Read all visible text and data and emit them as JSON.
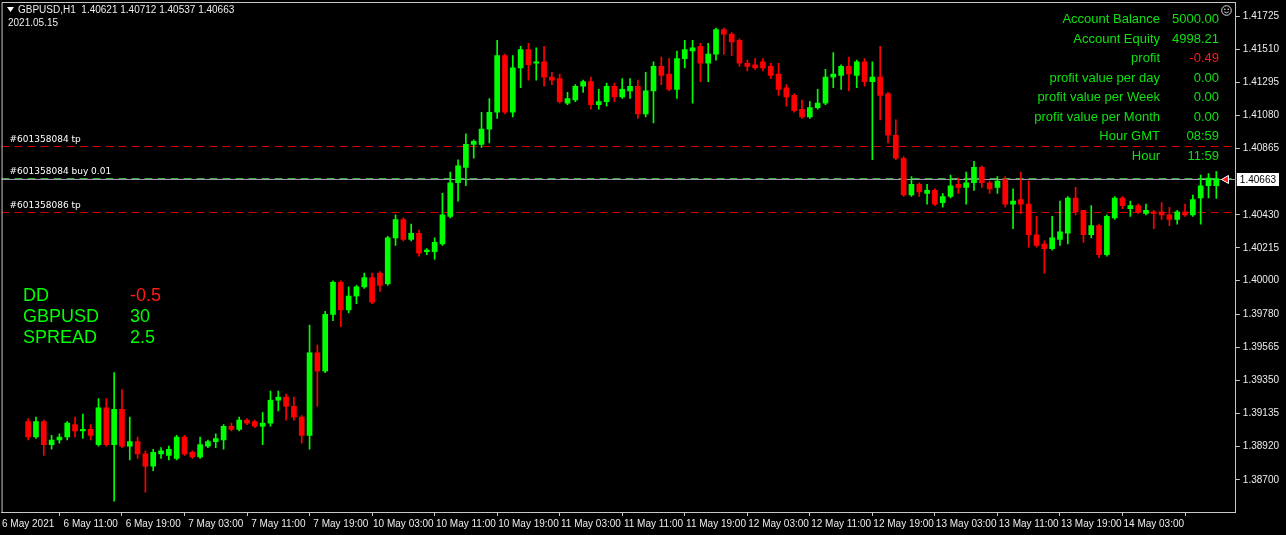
{
  "chart_data": {
    "type": "candlestick",
    "title": "GBPUSD,H1  1.40621 1.40712 1.40537 1.40663",
    "subtitle": "2021.05.15",
    "categories": [
      "6 May 2021",
      null,
      null,
      null,
      null,
      null,
      null,
      null,
      "6 May 11:00",
      null,
      null,
      null,
      null,
      null,
      null,
      null,
      "6 May 19:00",
      null,
      null,
      null,
      null,
      null,
      null,
      null,
      "7 May 03:00",
      null,
      null,
      null,
      null,
      null,
      null,
      null,
      "7 May 11:00",
      null,
      null,
      null,
      null,
      null,
      null,
      null,
      "7 May 19:00",
      null,
      null,
      null,
      null,
      null,
      null,
      null,
      "10 May 03:00",
      null,
      null,
      null,
      null,
      null,
      null,
      null,
      "10 May 11:00",
      null,
      null,
      null,
      null,
      null,
      null,
      null,
      "10 May 19:00",
      null,
      null,
      null,
      null,
      null,
      null,
      null,
      "11 May 03:00",
      null,
      null,
      null,
      null,
      null,
      null,
      null,
      "11 May 11:00",
      null,
      null,
      null,
      null,
      null,
      null,
      null,
      "11 May 19:00",
      null,
      null,
      null,
      null,
      null,
      null,
      null,
      "12 May 03:00",
      null,
      null,
      null,
      null,
      null,
      null,
      null,
      "12 May 11:00",
      null,
      null,
      null,
      null,
      null,
      null,
      null,
      "12 May 19:00",
      null,
      null,
      null,
      null,
      null,
      null,
      null,
      "13 May 03:00",
      null,
      null,
      null,
      null,
      null,
      null,
      null,
      "13 May 11:00",
      null,
      null,
      null,
      null,
      null,
      null,
      null,
      "13 May 19:00",
      null,
      null,
      null,
      null,
      null,
      null,
      null,
      "14 May 03:00",
      null,
      null,
      null,
      null,
      null,
      null,
      null,
      null
    ],
    "ohlc": [
      [
        1.3908,
        1.391,
        1.3896,
        1.3898
      ],
      [
        1.3898,
        1.3911,
        1.3897,
        1.3908
      ],
      [
        1.3908,
        1.3909,
        1.3886,
        1.3893
      ],
      [
        1.3893,
        1.3899,
        1.389,
        1.3896
      ],
      [
        1.3896,
        1.39,
        1.3894,
        1.3898
      ],
      [
        1.3898,
        1.3908,
        1.3896,
        1.3907
      ],
      [
        1.3906,
        1.3911,
        1.3898,
        1.3902
      ],
      [
        1.3902,
        1.3913,
        1.3897,
        1.3903
      ],
      [
        1.3903,
        1.3906,
        1.3896,
        1.3899
      ],
      [
        1.3893,
        1.3923,
        1.3892,
        1.3917
      ],
      [
        1.3917,
        1.3923,
        1.3892,
        1.3893
      ],
      [
        1.3893,
        1.394,
        1.3856,
        1.3916
      ],
      [
        1.3916,
        1.3929,
        1.3891,
        1.3892
      ],
      [
        1.3892,
        1.3911,
        1.3883,
        1.3895
      ],
      [
        1.3895,
        1.3898,
        1.3884,
        1.3887
      ],
      [
        1.3887,
        1.3889,
        1.3862,
        1.3879
      ],
      [
        1.3879,
        1.389,
        1.3876,
        1.3888
      ],
      [
        1.3887,
        1.3891,
        1.3884,
        1.3889
      ],
      [
        1.3886,
        1.3892,
        1.3883,
        1.389
      ],
      [
        1.3884,
        1.3899,
        1.3883,
        1.3898
      ],
      [
        1.3898,
        1.3899,
        1.3886,
        1.3887
      ],
      [
        1.3888,
        1.3889,
        1.3884,
        1.3885
      ],
      [
        1.3885,
        1.3898,
        1.3884,
        1.3893
      ],
      [
        1.3892,
        1.3896,
        1.3891,
        1.3895
      ],
      [
        1.3895,
        1.39,
        1.3891,
        1.3897
      ],
      [
        1.3896,
        1.3906,
        1.389,
        1.3905
      ],
      [
        1.3905,
        1.3907,
        1.3902,
        1.3903
      ],
      [
        1.3903,
        1.3911,
        1.3902,
        1.3909
      ],
      [
        1.3909,
        1.391,
        1.3906,
        1.3907
      ],
      [
        1.3908,
        1.3909,
        1.3904,
        1.3905
      ],
      [
        1.3905,
        1.3914,
        1.3893,
        1.3907
      ],
      [
        1.3907,
        1.3928,
        1.3905,
        1.3922
      ],
      [
        1.3922,
        1.3928,
        1.3915,
        1.3924
      ],
      [
        1.3924,
        1.3926,
        1.3909,
        1.3918
      ],
      [
        1.3918,
        1.3924,
        1.3909,
        1.3911
      ],
      [
        1.3911,
        1.3912,
        1.3894,
        1.3899
      ],
      [
        1.3899,
        1.3971,
        1.389,
        1.3953
      ],
      [
        1.3953,
        1.3958,
        1.3918,
        1.3941
      ],
      [
        1.3941,
        1.398,
        1.394,
        1.3978
      ],
      [
        1.3978,
        1.4,
        1.3974,
        1.3999
      ],
      [
        1.3999,
        1.4,
        1.397,
        1.3981
      ],
      [
        1.3981,
        1.3996,
        1.3979,
        1.399
      ],
      [
        1.399,
        1.3997,
        1.3985,
        1.3996
      ],
      [
        1.3996,
        1.4005,
        1.3995,
        1.4002
      ],
      [
        1.4002,
        1.4005,
        1.3985,
        1.3986
      ],
      [
        1.4005,
        1.4006,
        1.3993,
        1.3997
      ],
      [
        1.3998,
        1.4029,
        1.3997,
        1.4028
      ],
      [
        1.4028,
        1.4043,
        1.4023,
        1.404
      ],
      [
        1.404,
        1.4041,
        1.4026,
        1.4027
      ],
      [
        1.4027,
        1.4037,
        1.4026,
        1.4031
      ],
      [
        1.4031,
        1.4033,
        1.4016,
        1.4018
      ],
      [
        1.4019,
        1.4021,
        1.4017,
        1.402
      ],
      [
        1.4019,
        1.4028,
        1.4014,
        1.4025
      ],
      [
        1.4024,
        1.4057,
        1.4023,
        1.4043
      ],
      [
        1.4042,
        1.4071,
        1.4041,
        1.4064
      ],
      [
        1.4064,
        1.4079,
        1.4052,
        1.4075
      ],
      [
        1.4074,
        1.4096,
        1.4062,
        1.4089
      ],
      [
        1.4089,
        1.4092,
        1.408,
        1.4091
      ],
      [
        1.4089,
        1.411,
        1.4087,
        1.4099
      ],
      [
        1.4099,
        1.4119,
        1.409,
        1.411
      ],
      [
        1.411,
        1.4157,
        1.4106,
        1.4147
      ],
      [
        1.4147,
        1.4148,
        1.4109,
        1.411
      ],
      [
        1.411,
        1.4147,
        1.4107,
        1.4139
      ],
      [
        1.4139,
        1.4153,
        1.4126,
        1.4151
      ],
      [
        1.4151,
        1.4155,
        1.4131,
        1.4141
      ],
      [
        1.4142,
        1.4152,
        1.4131,
        1.4143
      ],
      [
        1.4143,
        1.4153,
        1.4127,
        1.4133
      ],
      [
        1.4133,
        1.4136,
        1.4128,
        1.4131
      ],
      [
        1.4132,
        1.4135,
        1.4116,
        1.4117
      ],
      [
        1.4116,
        1.4123,
        1.4115,
        1.4119
      ],
      [
        1.4118,
        1.4128,
        1.4117,
        1.4127
      ],
      [
        1.4127,
        1.4131,
        1.4123,
        1.413
      ],
      [
        1.413,
        1.4133,
        1.4112,
        1.4115
      ],
      [
        1.4115,
        1.4125,
        1.4112,
        1.4117
      ],
      [
        1.4117,
        1.4129,
        1.4114,
        1.4127
      ],
      [
        1.4127,
        1.4129,
        1.4117,
        1.412
      ],
      [
        1.412,
        1.4132,
        1.4119,
        1.4125
      ],
      [
        1.4124,
        1.4132,
        1.4119,
        1.4127
      ],
      [
        1.4127,
        1.4131,
        1.4106,
        1.4109
      ],
      [
        1.4109,
        1.4136,
        1.4107,
        1.4124
      ],
      [
        1.4124,
        1.4143,
        1.4103,
        1.414
      ],
      [
        1.414,
        1.4146,
        1.4128,
        1.4134
      ],
      [
        1.4135,
        1.4145,
        1.4124,
        1.4125
      ],
      [
        1.4125,
        1.415,
        1.4119,
        1.4145
      ],
      [
        1.4145,
        1.4157,
        1.4139,
        1.4151
      ],
      [
        1.415,
        1.4157,
        1.4116,
        1.4152
      ],
      [
        1.4153,
        1.4155,
        1.413,
        1.4142
      ],
      [
        1.4142,
        1.4155,
        1.413,
        1.4148
      ],
      [
        1.4148,
        1.4165,
        1.4144,
        1.4164
      ],
      [
        1.4164,
        1.4165,
        1.4148,
        1.4161
      ],
      [
        1.4161,
        1.4162,
        1.4147,
        1.4156
      ],
      [
        1.4157,
        1.4158,
        1.414,
        1.4142
      ],
      [
        1.4142,
        1.4144,
        1.4137,
        1.414
      ],
      [
        1.4141,
        1.4145,
        1.4138,
        1.4139
      ],
      [
        1.4143,
        1.4145,
        1.4137,
        1.4139
      ],
      [
        1.414,
        1.4142,
        1.4132,
        1.4134
      ],
      [
        1.4135,
        1.4142,
        1.4121,
        1.4125
      ],
      [
        1.4126,
        1.4128,
        1.4114,
        1.412
      ],
      [
        1.4121,
        1.4122,
        1.411,
        1.4111
      ],
      [
        1.4112,
        1.4118,
        1.4106,
        1.4107
      ],
      [
        1.4107,
        1.4117,
        1.4106,
        1.4113
      ],
      [
        1.4113,
        1.4125,
        1.4112,
        1.4116
      ],
      [
        1.4116,
        1.4138,
        1.4115,
        1.4133
      ],
      [
        1.4133,
        1.4149,
        1.4126,
        1.4135
      ],
      [
        1.4134,
        1.4141,
        1.4125,
        1.414
      ],
      [
        1.414,
        1.4146,
        1.4124,
        1.4135
      ],
      [
        1.4134,
        1.4144,
        1.4126,
        1.4143
      ],
      [
        1.4143,
        1.4145,
        1.4127,
        1.413
      ],
      [
        1.413,
        1.4143,
        1.4079,
        1.4133
      ],
      [
        1.4133,
        1.4153,
        1.4105,
        1.4121
      ],
      [
        1.4122,
        1.4123,
        1.409,
        1.4095
      ],
      [
        1.4095,
        1.4105,
        1.4079,
        1.408
      ],
      [
        1.408,
        1.4081,
        1.4055,
        1.4056
      ],
      [
        1.4056,
        1.4068,
        1.4055,
        1.4063
      ],
      [
        1.4063,
        1.4064,
        1.4055,
        1.4058
      ],
      [
        1.4057,
        1.4063,
        1.405,
        1.4059
      ],
      [
        1.4059,
        1.406,
        1.4049,
        1.405
      ],
      [
        1.4051,
        1.4057,
        1.4048,
        1.4055
      ],
      [
        1.4055,
        1.4069,
        1.4054,
        1.4062
      ],
      [
        1.4063,
        1.4067,
        1.4057,
        1.4061
      ],
      [
        1.4061,
        1.4071,
        1.405,
        1.4064
      ],
      [
        1.4064,
        1.4078,
        1.4059,
        1.4074
      ],
      [
        1.4074,
        1.4075,
        1.4061,
        1.4064
      ],
      [
        1.4064,
        1.4065,
        1.4057,
        1.406
      ],
      [
        1.4061,
        1.4068,
        1.4057,
        1.4065
      ],
      [
        1.4066,
        1.4068,
        1.4048,
        1.405
      ],
      [
        1.405,
        1.406,
        1.4034,
        1.4052
      ],
      [
        1.4053,
        1.4071,
        1.4044,
        1.405
      ],
      [
        1.405,
        1.4065,
        1.4022,
        1.403
      ],
      [
        1.403,
        1.4042,
        1.4022,
        1.4023
      ],
      [
        1.4024,
        1.4026,
        1.4005,
        1.4021
      ],
      [
        1.4021,
        1.4042,
        1.402,
        1.4028
      ],
      [
        1.4027,
        1.4052,
        1.4023,
        1.4032
      ],
      [
        1.4031,
        1.4055,
        1.4024,
        1.4054
      ],
      [
        1.4054,
        1.4061,
        1.4043,
        1.4045
      ],
      [
        1.4046,
        1.4046,
        1.4025,
        1.403
      ],
      [
        1.403,
        1.4049,
        1.4028,
        1.4036
      ],
      [
        1.4036,
        1.4037,
        1.4015,
        1.4017
      ],
      [
        1.4017,
        1.4043,
        1.4016,
        1.4042
      ],
      [
        1.4041,
        1.4055,
        1.404,
        1.4054
      ],
      [
        1.4054,
        1.4055,
        1.4047,
        1.4049
      ],
      [
        1.4047,
        1.4052,
        1.4042,
        1.4049
      ],
      [
        1.4049,
        1.405,
        1.4044,
        1.4045
      ],
      [
        1.4044,
        1.405,
        1.4043,
        1.4046
      ],
      [
        1.4045,
        1.4046,
        1.4034,
        1.4044
      ],
      [
        1.4045,
        1.4051,
        1.404,
        1.4043
      ],
      [
        1.4043,
        1.4048,
        1.4036,
        1.404
      ],
      [
        1.404,
        1.4046,
        1.4037,
        1.4045
      ],
      [
        1.4045,
        1.405,
        1.4042,
        1.4043
      ],
      [
        1.4043,
        1.4056,
        1.4042,
        1.4053
      ],
      [
        1.4054,
        1.4069,
        1.4037,
        1.4062
      ],
      [
        1.4062,
        1.407,
        1.4054,
        1.4067
      ],
      [
        1.40621,
        1.40712,
        1.40537,
        1.40663
      ]
    ],
    "colors": [
      "#ff0000",
      "#00ff00",
      "#ff0000",
      "#00ff00",
      "#00ff00",
      "#00ff00",
      "#ff0000",
      "#00ff00",
      "#ff0000",
      "#00ff00",
      "#ff0000",
      "#00ff00",
      "#ff0000",
      "#00ff00",
      "#ff0000",
      "#ff0000",
      "#00ff00",
      "#00ff00",
      "#00ff00",
      "#00ff00",
      "#ff0000",
      "#ff0000",
      "#00ff00",
      "#00ff00",
      "#00ff00",
      "#00ff00",
      "#ff0000",
      "#00ff00",
      "#ff0000",
      "#ff0000",
      "#00ff00",
      "#00ff00",
      "#00ff00",
      "#ff0000",
      "#ff0000",
      "#ff0000",
      "#00ff00",
      "#ff0000",
      "#00ff00",
      "#00ff00",
      "#ff0000",
      "#00ff00",
      "#00ff00",
      "#00ff00",
      "#ff0000",
      "#ff0000",
      "#00ff00",
      "#00ff00",
      "#ff0000",
      "#00ff00",
      "#ff0000",
      "#00ff00",
      "#00ff00",
      "#00ff00",
      "#00ff00",
      "#00ff00",
      "#00ff00",
      "#00ff00",
      "#00ff00",
      "#00ff00",
      "#00ff00",
      "#ff0000",
      "#00ff00",
      "#00ff00",
      "#ff0000",
      "#00ff00",
      "#ff0000",
      "#ff0000",
      "#ff0000",
      "#00ff00",
      "#00ff00",
      "#00ff00",
      "#ff0000",
      "#00ff00",
      "#00ff00",
      "#ff0000",
      "#00ff00",
      "#00ff00",
      "#ff0000",
      "#00ff00",
      "#00ff00",
      "#ff0000",
      "#ff0000",
      "#00ff00",
      "#00ff00",
      "#00ff00",
      "#ff0000",
      "#00ff00",
      "#00ff00",
      "#ff0000",
      "#ff0000",
      "#ff0000",
      "#ff0000",
      "#ff0000",
      "#ff0000",
      "#ff0000",
      "#ff0000",
      "#ff0000",
      "#ff0000",
      "#ff0000",
      "#00ff00",
      "#00ff00",
      "#00ff00",
      "#00ff00",
      "#00ff00",
      "#ff0000",
      "#00ff00",
      "#ff0000",
      "#00ff00",
      "#ff0000",
      "#ff0000",
      "#ff0000",
      "#ff0000",
      "#00ff00",
      "#ff0000",
      "#00ff00",
      "#ff0000",
      "#00ff00",
      "#00ff00",
      "#ff0000",
      "#00ff00",
      "#00ff00",
      "#ff0000",
      "#ff0000",
      "#00ff00",
      "#ff0000",
      "#00ff00",
      "#ff0000",
      "#ff0000",
      "#ff0000",
      "#ff0000",
      "#00ff00",
      "#00ff00",
      "#00ff00",
      "#ff0000",
      "#ff0000",
      "#00ff00",
      "#ff0000",
      "#00ff00",
      "#00ff00",
      "#ff0000",
      "#00ff00",
      "#ff0000",
      "#00ff00",
      "#ff0000",
      "#ff0000",
      "#ff0000",
      "#00ff00",
      "#ff0000",
      "#00ff00",
      "#00ff00",
      "#00ff00",
      "#00ff00"
    ],
    "ylim": [
      1.3849,
      1.4182
    ],
    "yticks": [
      1.41725,
      {
        "value": 1.4151,
        "label": "1.41510"
      },
      1.41295,
      {
        "value": 1.4108,
        "label": "1.41080"
      },
      1.40865,
      {
        "value": 1.4043,
        "label": "1.40430"
      },
      1.40215,
      {
        "value": 1.4,
        "label": "1.40000"
      },
      {
        "value": 1.3978,
        "label": "1.39780"
      },
      1.39565,
      {
        "value": 1.3935,
        "label": "1.39350"
      },
      1.39135,
      {
        "value": 1.3892,
        "label": "1.38920"
      },
      {
        "value": 1.387,
        "label": "1.38700"
      }
    ],
    "ref_lines": [
      {
        "axis": "y",
        "value": 1.4088,
        "label": "#601358084 tp",
        "color": "#d40000",
        "line_style": "dashed"
      },
      {
        "axis": "y",
        "value": 1.40663,
        "label": "1.40663",
        "color": "#9a9aaa",
        "line_style": "solid"
      },
      {
        "axis": "y",
        "value": 1.4067,
        "label": "#601358084 buy 0.01",
        "color": "#3cb043",
        "line_style": "dashed"
      },
      {
        "axis": "y",
        "value": 1.4045,
        "label": "#601358086 tp",
        "color": "#d40000",
        "line_style": "dashed"
      }
    ],
    "annotations": [
      "Account Balance",
      "5000.00",
      "Account Equity",
      "4998.21",
      "profit",
      "-0.49",
      "profit value per day",
      "0.00",
      "profit value per Week",
      "0.00",
      "profit value per Month",
      "0.00",
      "Hour GMT",
      "08:59",
      "Hour",
      "11:59",
      "DD",
      "-0.5",
      "GBPUSD",
      "30",
      "SPREAD",
      "2.5"
    ]
  }
}
